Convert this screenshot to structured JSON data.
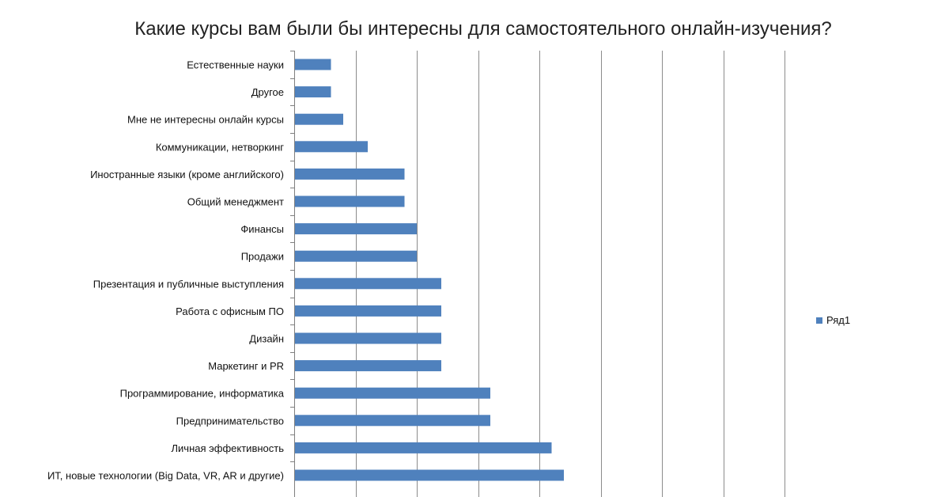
{
  "chart_data": {
    "type": "bar",
    "orientation": "horizontal",
    "title": "Какие курсы вам были бы интересны для самостоятельного онлайн-изучения?",
    "categories": [
      "Естественные науки",
      "Другое",
      "Мне не интересны онлайн курсы",
      "Коммуникации, нетворкинг",
      "Иностранные языки (кроме английского)",
      "Общий менеджмент",
      "Финансы",
      "Продажи",
      "Презентация и публичные выступления",
      "Работа с офисным ПО",
      "Дизайн",
      "Маркетинг и PR",
      "Программирование, информатика",
      "Предпринимательство",
      "Личная эффективность",
      "ИТ, новые технологии (Big Data, VR, AR и другие)"
    ],
    "series": [
      {
        "name": "Ряд1",
        "values": [
          3,
          3,
          4,
          6,
          9,
          9,
          10,
          10,
          12,
          12,
          12,
          12,
          16,
          16,
          21,
          22
        ]
      }
    ],
    "xlim": [
      0,
      40
    ],
    "major_unit": 5,
    "grid": true,
    "tick_labels_visible": false,
    "legend_position": "right",
    "bar_color": "#4F81BD"
  }
}
